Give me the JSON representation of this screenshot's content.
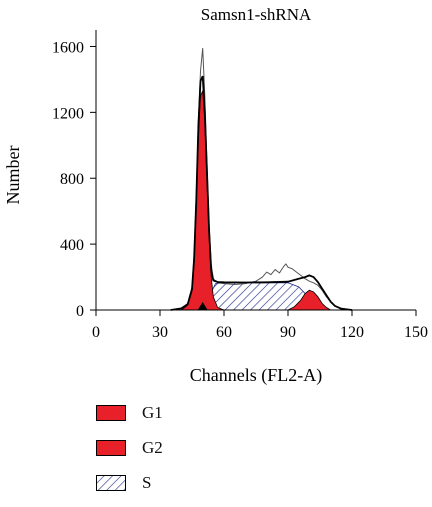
{
  "chart_data": {
    "type": "area",
    "title": "Samsn1-shRNA",
    "xlabel": "Channels (FL2-A)",
    "ylabel": "Number",
    "xlim": [
      0,
      150
    ],
    "ylim": [
      0,
      1700
    ],
    "xticks": [
      "0",
      "30",
      "60",
      "90",
      "120",
      "150"
    ],
    "yticks": [
      "0",
      "400",
      "800",
      "1200",
      "1600"
    ],
    "marker_x": 50,
    "series": [
      {
        "name": "G1",
        "color": "#e8202a",
        "x": [
          40,
          43,
          45,
          46,
          47,
          48,
          49,
          50,
          51,
          52,
          53,
          54,
          55,
          57,
          60
        ],
        "y": [
          0,
          30,
          120,
          300,
          650,
          1050,
          1300,
          1330,
          1150,
          800,
          450,
          200,
          80,
          15,
          0
        ]
      },
      {
        "name": "G2",
        "color": "#e8202a",
        "x": [
          90,
          93,
          96,
          98,
          100,
          102,
          104,
          106,
          108,
          110
        ],
        "y": [
          0,
          20,
          60,
          100,
          120,
          110,
          80,
          40,
          15,
          0
        ]
      },
      {
        "name": "S",
        "color": "#1a2a8a",
        "x": [
          50,
          53,
          56,
          60,
          70,
          80,
          90,
          95,
          98,
          100,
          103,
          106,
          108
        ],
        "y": [
          0,
          80,
          160,
          165,
          165,
          165,
          165,
          140,
          100,
          60,
          30,
          10,
          0
        ]
      },
      {
        "x": [
          0,
          35,
          40,
          43,
          45,
          46,
          47,
          48,
          49,
          50,
          51,
          52,
          53,
          54,
          55,
          57,
          60,
          65,
          70,
          75,
          78,
          80,
          82,
          84,
          86,
          88,
          89,
          90,
          92,
          94,
          96,
          98,
          100,
          102,
          104,
          106,
          108,
          110,
          112,
          115,
          120,
          150
        ],
        "y": [
          0,
          0,
          10,
          40,
          140,
          330,
          700,
          1150,
          1450,
          1590,
          1300,
          900,
          520,
          280,
          190,
          165,
          160,
          155,
          160,
          175,
          200,
          230,
          215,
          245,
          225,
          265,
          280,
          260,
          250,
          230,
          210,
          190,
          175,
          165,
          150,
          120,
          80,
          50,
          25,
          8,
          0,
          0
        ]
      },
      {
        "x": [
          35,
          40,
          43,
          45,
          46,
          47,
          48,
          49,
          50,
          51,
          52,
          53,
          54,
          55,
          57,
          60,
          70,
          80,
          90,
          95,
          98,
          100,
          102,
          104,
          106,
          108,
          110,
          112,
          115,
          120
        ],
        "y": [
          0,
          10,
          35,
          125,
          310,
          670,
          1120,
          1390,
          1420,
          1200,
          850,
          480,
          240,
          180,
          170,
          168,
          167,
          168,
          172,
          190,
          200,
          210,
          200,
          170,
          130,
          90,
          50,
          25,
          8,
          0
        ]
      }
    ]
  },
  "legend": [
    {
      "label": "G1",
      "fill": "#e8202a",
      "pattern": false
    },
    {
      "label": "G2",
      "fill": "#e8202a",
      "pattern": false
    },
    {
      "label": "S",
      "fill": "#ffffff",
      "pattern": true
    }
  ]
}
